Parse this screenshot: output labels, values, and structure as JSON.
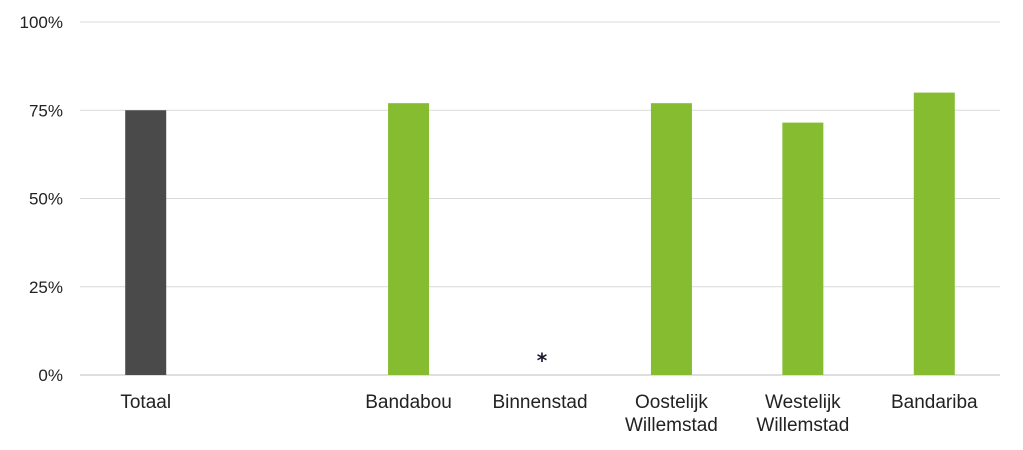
{
  "chart_data": {
    "type": "bar",
    "categories": [
      [
        "Totaal"
      ],
      [
        ""
      ],
      [
        "Bandabou"
      ],
      [
        "Binnenstad"
      ],
      [
        "Oostelijk",
        "Willemstad"
      ],
      [
        "Westelijk",
        "Willemstad"
      ],
      [
        "Bandariba"
      ]
    ],
    "values": [
      75,
      null,
      77,
      null,
      77,
      71.5,
      80
    ],
    "bar_colors": [
      "#4a4a4a",
      null,
      "#86bc30",
      null,
      "#86bc30",
      "#86bc30",
      "#86bc30"
    ],
    "annotations": [
      {
        "category_index": 3,
        "text": "*"
      }
    ],
    "yticks": [
      {
        "value": 0,
        "label": "0%"
      },
      {
        "value": 25,
        "label": "25%"
      },
      {
        "value": 50,
        "label": "50%"
      },
      {
        "value": 75,
        "label": "75%"
      },
      {
        "value": 100,
        "label": "100%"
      }
    ],
    "ylim": [
      0,
      100
    ],
    "grid": true,
    "legend": "none",
    "title": "",
    "xlabel": "",
    "ylabel": ""
  }
}
